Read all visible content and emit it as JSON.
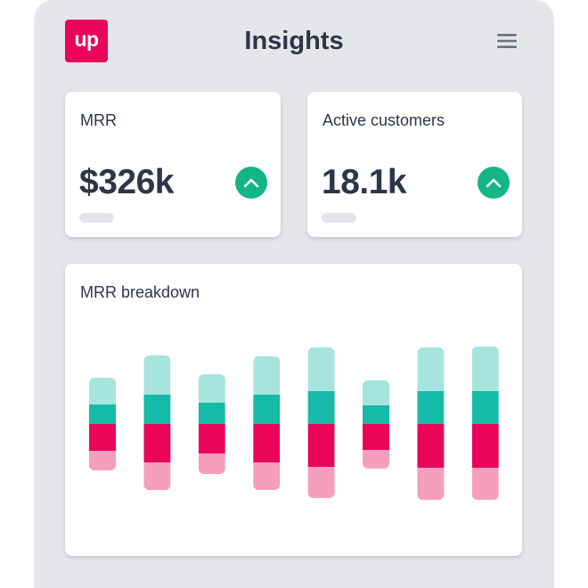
{
  "header": {
    "logo_text": "up",
    "title": "Insights",
    "menu_icon": "hamburger-menu-icon"
  },
  "metrics": [
    {
      "label": "MRR",
      "value": "$326k",
      "trend_icon": "chevron-up-icon",
      "trend": "up"
    },
    {
      "label": "Active customers",
      "value": "18.1k",
      "trend_icon": "chevron-up-icon",
      "trend": "up"
    }
  ],
  "breakdown": {
    "label": "MRR breakdown"
  },
  "colors": {
    "brand": "#e8055a",
    "trend_up": "#14b683",
    "text": "#2e3547",
    "background": "#e5e6ea",
    "segment_light_teal": "#a5e5de",
    "segment_teal": "#15bba6",
    "segment_magenta": "#ea0558",
    "segment_pink": "#f59ebd"
  },
  "chart_data": {
    "type": "bar",
    "stacked": true,
    "diverging": true,
    "title": "MRR breakdown",
    "grid": false,
    "axes_visible": false,
    "legend": "none",
    "bars": [
      {
        "light_teal": 30,
        "teal": 22,
        "magenta": 30,
        "pink": 22
      },
      {
        "light_teal": 44,
        "teal": 33,
        "magenta": 43,
        "pink": 31
      },
      {
        "light_teal": 32,
        "teal": 24,
        "magenta": 33,
        "pink": 23
      },
      {
        "light_teal": 43,
        "teal": 33,
        "magenta": 43,
        "pink": 31
      },
      {
        "light_teal": 49,
        "teal": 37,
        "magenta": 48,
        "pink": 35
      },
      {
        "light_teal": 28,
        "teal": 21,
        "magenta": 29,
        "pink": 21
      },
      {
        "light_teal": 49,
        "teal": 37,
        "magenta": 49,
        "pink": 36
      },
      {
        "light_teal": 50,
        "teal": 37,
        "magenta": 49,
        "pink": 36
      }
    ]
  }
}
